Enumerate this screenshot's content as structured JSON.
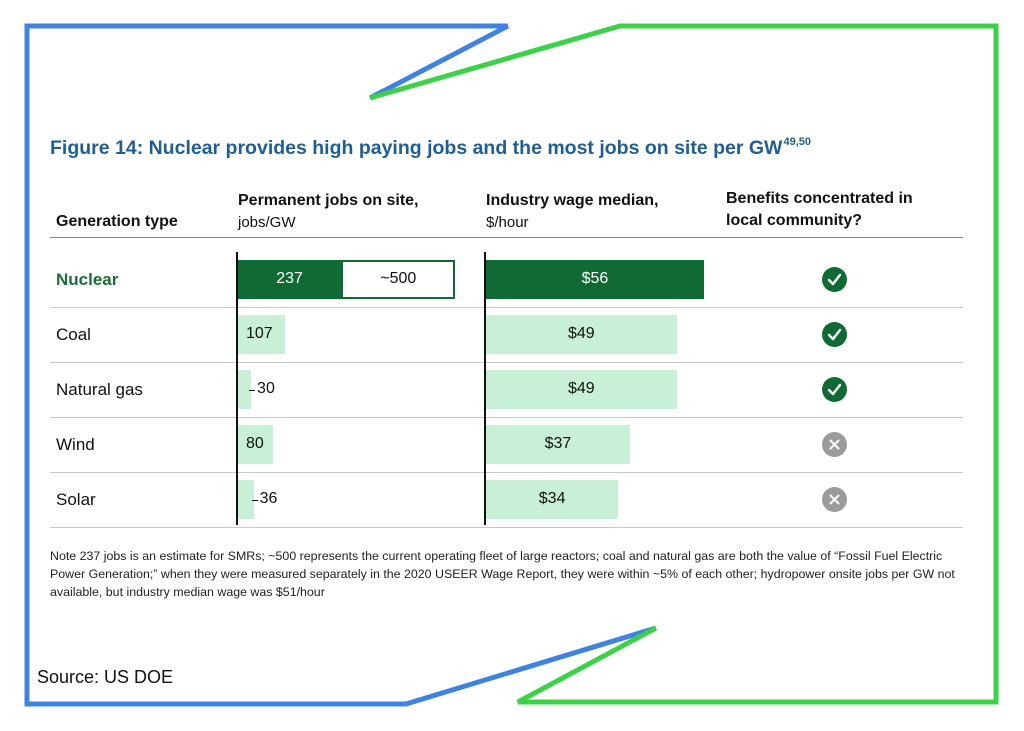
{
  "figure": {
    "title": "Figure 14: Nuclear provides high paying jobs and the most jobs on site per GW",
    "title_refs": "49,50"
  },
  "headers": {
    "generation_type": "Generation type",
    "jobs_title": "Permanent jobs on site,",
    "jobs_unit": "jobs/GW",
    "wage_title": "Industry wage median,",
    "wage_unit": "$/hour",
    "benefits_line1": "Benefits concentrated in",
    "benefits_line2": "local community?"
  },
  "chart_data": {
    "type": "bar",
    "categories": [
      "Nuclear",
      "Coal",
      "Natural gas",
      "Wind",
      "Solar"
    ],
    "jobs_labels": [
      "237",
      "107",
      "30",
      "80",
      "36"
    ],
    "jobs_values": [
      237,
      107,
      30,
      80,
      36
    ],
    "nuclear_fleet_label": "~500",
    "nuclear_fleet_value": 500,
    "wage_labels": [
      "$56",
      "$49",
      "$49",
      "$37",
      "$34"
    ],
    "wage_values": [
      56,
      49,
      49,
      37,
      34
    ],
    "local_benefits": [
      true,
      true,
      true,
      false,
      false
    ],
    "colors": {
      "highlight": "#0f6b33",
      "light": "#c7f0d6",
      "no": "#9b9b9b",
      "title": "#1f5e93"
    }
  },
  "note": "Note 237 jobs is an estimate for SMRs; ~500 represents the current operating fleet of large reactors; coal and natural gas are both the value of “Fossil Fuel Electric Power Generation;” when they were measured separately in the 2020 USEER Wage Report, they were within ~5% of each other; hydropower onsite jobs per GW not available, but industry median wage was $51/hour",
  "source": "Source: US DOE"
}
